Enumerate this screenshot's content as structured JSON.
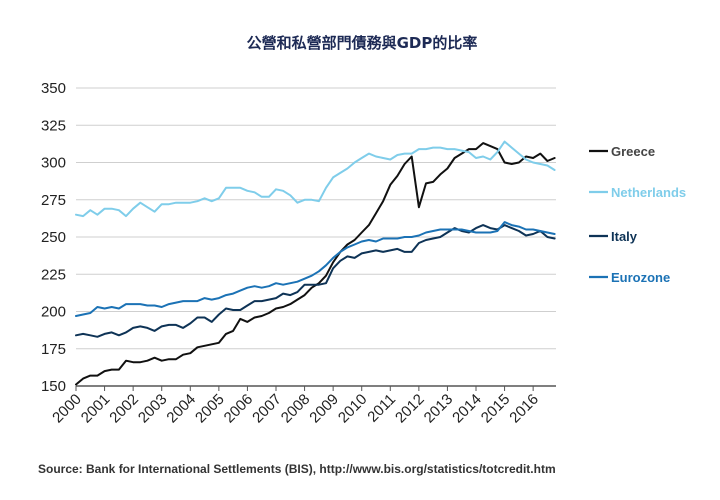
{
  "source_note": "Source: Bank for International Settlements (BIS), http://www.bis.org/statistics/totcredit.htm",
  "chart_data": {
    "type": "line",
    "title": "公營和私營部門債務與GDP的比率",
    "xlabel": "",
    "ylabel": "",
    "xlim": [
      2000,
      2016.8
    ],
    "ylim": [
      150,
      350
    ],
    "yticks": [
      150,
      175,
      200,
      225,
      250,
      275,
      300,
      325,
      350
    ],
    "xticks": [
      "2000",
      "2001",
      "2002",
      "2003",
      "2004",
      "2005",
      "2006",
      "2007",
      "2008",
      "2009",
      "2010",
      "2011",
      "2012",
      "2013",
      "2014",
      "2015",
      "2016"
    ],
    "grid": true,
    "legend_placement": "right",
    "series": [
      {
        "name": "Greece",
        "color": "#111111",
        "x": [
          2000,
          2000.25,
          2000.5,
          2000.75,
          2001,
          2001.25,
          2001.5,
          2001.75,
          2002,
          2002.25,
          2002.5,
          2002.75,
          2003,
          2003.25,
          2003.5,
          2003.75,
          2004,
          2004.25,
          2004.5,
          2004.75,
          2005,
          2005.25,
          2005.5,
          2005.75,
          2006,
          2006.25,
          2006.5,
          2006.75,
          2007,
          2007.25,
          2007.5,
          2007.75,
          2008,
          2008.25,
          2008.5,
          2008.75,
          2009,
          2009.25,
          2009.5,
          2009.75,
          2010,
          2010.25,
          2010.5,
          2010.75,
          2011,
          2011.25,
          2011.5,
          2011.75,
          2012,
          2012.25,
          2012.5,
          2012.75,
          2013,
          2013.25,
          2013.5,
          2013.75,
          2014,
          2014.25,
          2014.5,
          2014.75,
          2015,
          2015.25,
          2015.5,
          2015.75,
          2016,
          2016.25,
          2016.5,
          2016.75
        ],
        "values": [
          151,
          155,
          157,
          157,
          160,
          161,
          161,
          167,
          166,
          166,
          167,
          169,
          167,
          168,
          168,
          171,
          172,
          176,
          177,
          178,
          179,
          185,
          187,
          195,
          193,
          196,
          197,
          199,
          202,
          203,
          205,
          208,
          211,
          216,
          219,
          224,
          233,
          240,
          245,
          248,
          253,
          258,
          266,
          274,
          285,
          291,
          299,
          304,
          270,
          286,
          287,
          292,
          296,
          303,
          306,
          309,
          309,
          313,
          311,
          309,
          300,
          299,
          300,
          304,
          303,
          306,
          301,
          303
        ]
      },
      {
        "name": "Netherlands",
        "color": "#7fcdea",
        "x": [
          2000,
          2000.25,
          2000.5,
          2000.75,
          2001,
          2001.25,
          2001.5,
          2001.75,
          2002,
          2002.25,
          2002.5,
          2002.75,
          2003,
          2003.25,
          2003.5,
          2003.75,
          2004,
          2004.25,
          2004.5,
          2004.75,
          2005,
          2005.25,
          2005.5,
          2005.75,
          2006,
          2006.25,
          2006.5,
          2006.75,
          2007,
          2007.25,
          2007.5,
          2007.75,
          2008,
          2008.25,
          2008.5,
          2008.75,
          2009,
          2009.25,
          2009.5,
          2009.75,
          2010,
          2010.25,
          2010.5,
          2010.75,
          2011,
          2011.25,
          2011.5,
          2011.75,
          2012,
          2012.25,
          2012.5,
          2012.75,
          2013,
          2013.25,
          2013.5,
          2013.75,
          2014,
          2014.25,
          2014.5,
          2014.75,
          2015,
          2015.25,
          2015.5,
          2015.75,
          2016,
          2016.25,
          2016.5,
          2016.75
        ],
        "values": [
          265,
          264,
          268,
          265,
          269,
          269,
          268,
          264,
          269,
          273,
          270,
          267,
          272,
          272,
          273,
          273,
          273,
          274,
          276,
          274,
          276,
          283,
          283,
          283,
          281,
          280,
          277,
          277,
          282,
          281,
          278,
          273,
          275,
          275,
          274,
          283,
          290,
          293,
          296,
          300,
          303,
          306,
          304,
          303,
          302,
          305,
          306,
          306,
          309,
          309,
          310,
          310,
          309,
          309,
          308,
          307,
          303,
          304,
          302,
          307,
          314,
          310,
          306,
          302,
          300,
          299,
          298,
          295
        ]
      },
      {
        "name": "Italy",
        "color": "#0e3356",
        "x": [
          2000,
          2000.25,
          2000.5,
          2000.75,
          2001,
          2001.25,
          2001.5,
          2001.75,
          2002,
          2002.25,
          2002.5,
          2002.75,
          2003,
          2003.25,
          2003.5,
          2003.75,
          2004,
          2004.25,
          2004.5,
          2004.75,
          2005,
          2005.25,
          2005.5,
          2005.75,
          2006,
          2006.25,
          2006.5,
          2006.75,
          2007,
          2007.25,
          2007.5,
          2007.75,
          2008,
          2008.25,
          2008.5,
          2008.75,
          2009,
          2009.25,
          2009.5,
          2009.75,
          2010,
          2010.25,
          2010.5,
          2010.75,
          2011,
          2011.25,
          2011.5,
          2011.75,
          2012,
          2012.25,
          2012.5,
          2012.75,
          2013,
          2013.25,
          2013.5,
          2013.75,
          2014,
          2014.25,
          2014.5,
          2014.75,
          2015,
          2015.25,
          2015.5,
          2015.75,
          2016,
          2016.25,
          2016.5,
          2016.75
        ],
        "values": [
          184,
          185,
          184,
          183,
          185,
          186,
          184,
          186,
          189,
          190,
          189,
          187,
          190,
          191,
          191,
          189,
          192,
          196,
          196,
          193,
          198,
          202,
          201,
          201,
          204,
          207,
          207,
          208,
          209,
          212,
          211,
          213,
          218,
          218,
          218,
          219,
          229,
          234,
          237,
          236,
          239,
          240,
          241,
          240,
          241,
          242,
          240,
          240,
          246,
          248,
          249,
          250,
          253,
          256,
          254,
          253,
          256,
          258,
          256,
          255,
          258,
          256,
          254,
          251,
          252,
          254,
          250,
          249
        ]
      },
      {
        "name": "Eurozone",
        "color": "#1b72b5",
        "x": [
          2000,
          2000.25,
          2000.5,
          2000.75,
          2001,
          2001.25,
          2001.5,
          2001.75,
          2002,
          2002.25,
          2002.5,
          2002.75,
          2003,
          2003.25,
          2003.5,
          2003.75,
          2004,
          2004.25,
          2004.5,
          2004.75,
          2005,
          2005.25,
          2005.5,
          2005.75,
          2006,
          2006.25,
          2006.5,
          2006.75,
          2007,
          2007.25,
          2007.5,
          2007.75,
          2008,
          2008.25,
          2008.5,
          2008.75,
          2009,
          2009.25,
          2009.5,
          2009.75,
          2010,
          2010.25,
          2010.5,
          2010.75,
          2011,
          2011.25,
          2011.5,
          2011.75,
          2012,
          2012.25,
          2012.5,
          2012.75,
          2013,
          2013.25,
          2013.5,
          2013.75,
          2014,
          2014.25,
          2014.5,
          2014.75,
          2015,
          2015.25,
          2015.5,
          2015.75,
          2016,
          2016.25,
          2016.5,
          2016.75
        ],
        "values": [
          197,
          198,
          199,
          203,
          202,
          203,
          202,
          205,
          205,
          205,
          204,
          204,
          203,
          205,
          206,
          207,
          207,
          207,
          209,
          208,
          209,
          211,
          212,
          214,
          216,
          217,
          216,
          217,
          219,
          218,
          219,
          220,
          222,
          224,
          227,
          231,
          236,
          240,
          243,
          245,
          247,
          248,
          247,
          249,
          249,
          249,
          250,
          250,
          251,
          253,
          254,
          255,
          255,
          255,
          255,
          254,
          253,
          253,
          253,
          254,
          260,
          258,
          257,
          255,
          255,
          254,
          253,
          252
        ]
      }
    ]
  }
}
